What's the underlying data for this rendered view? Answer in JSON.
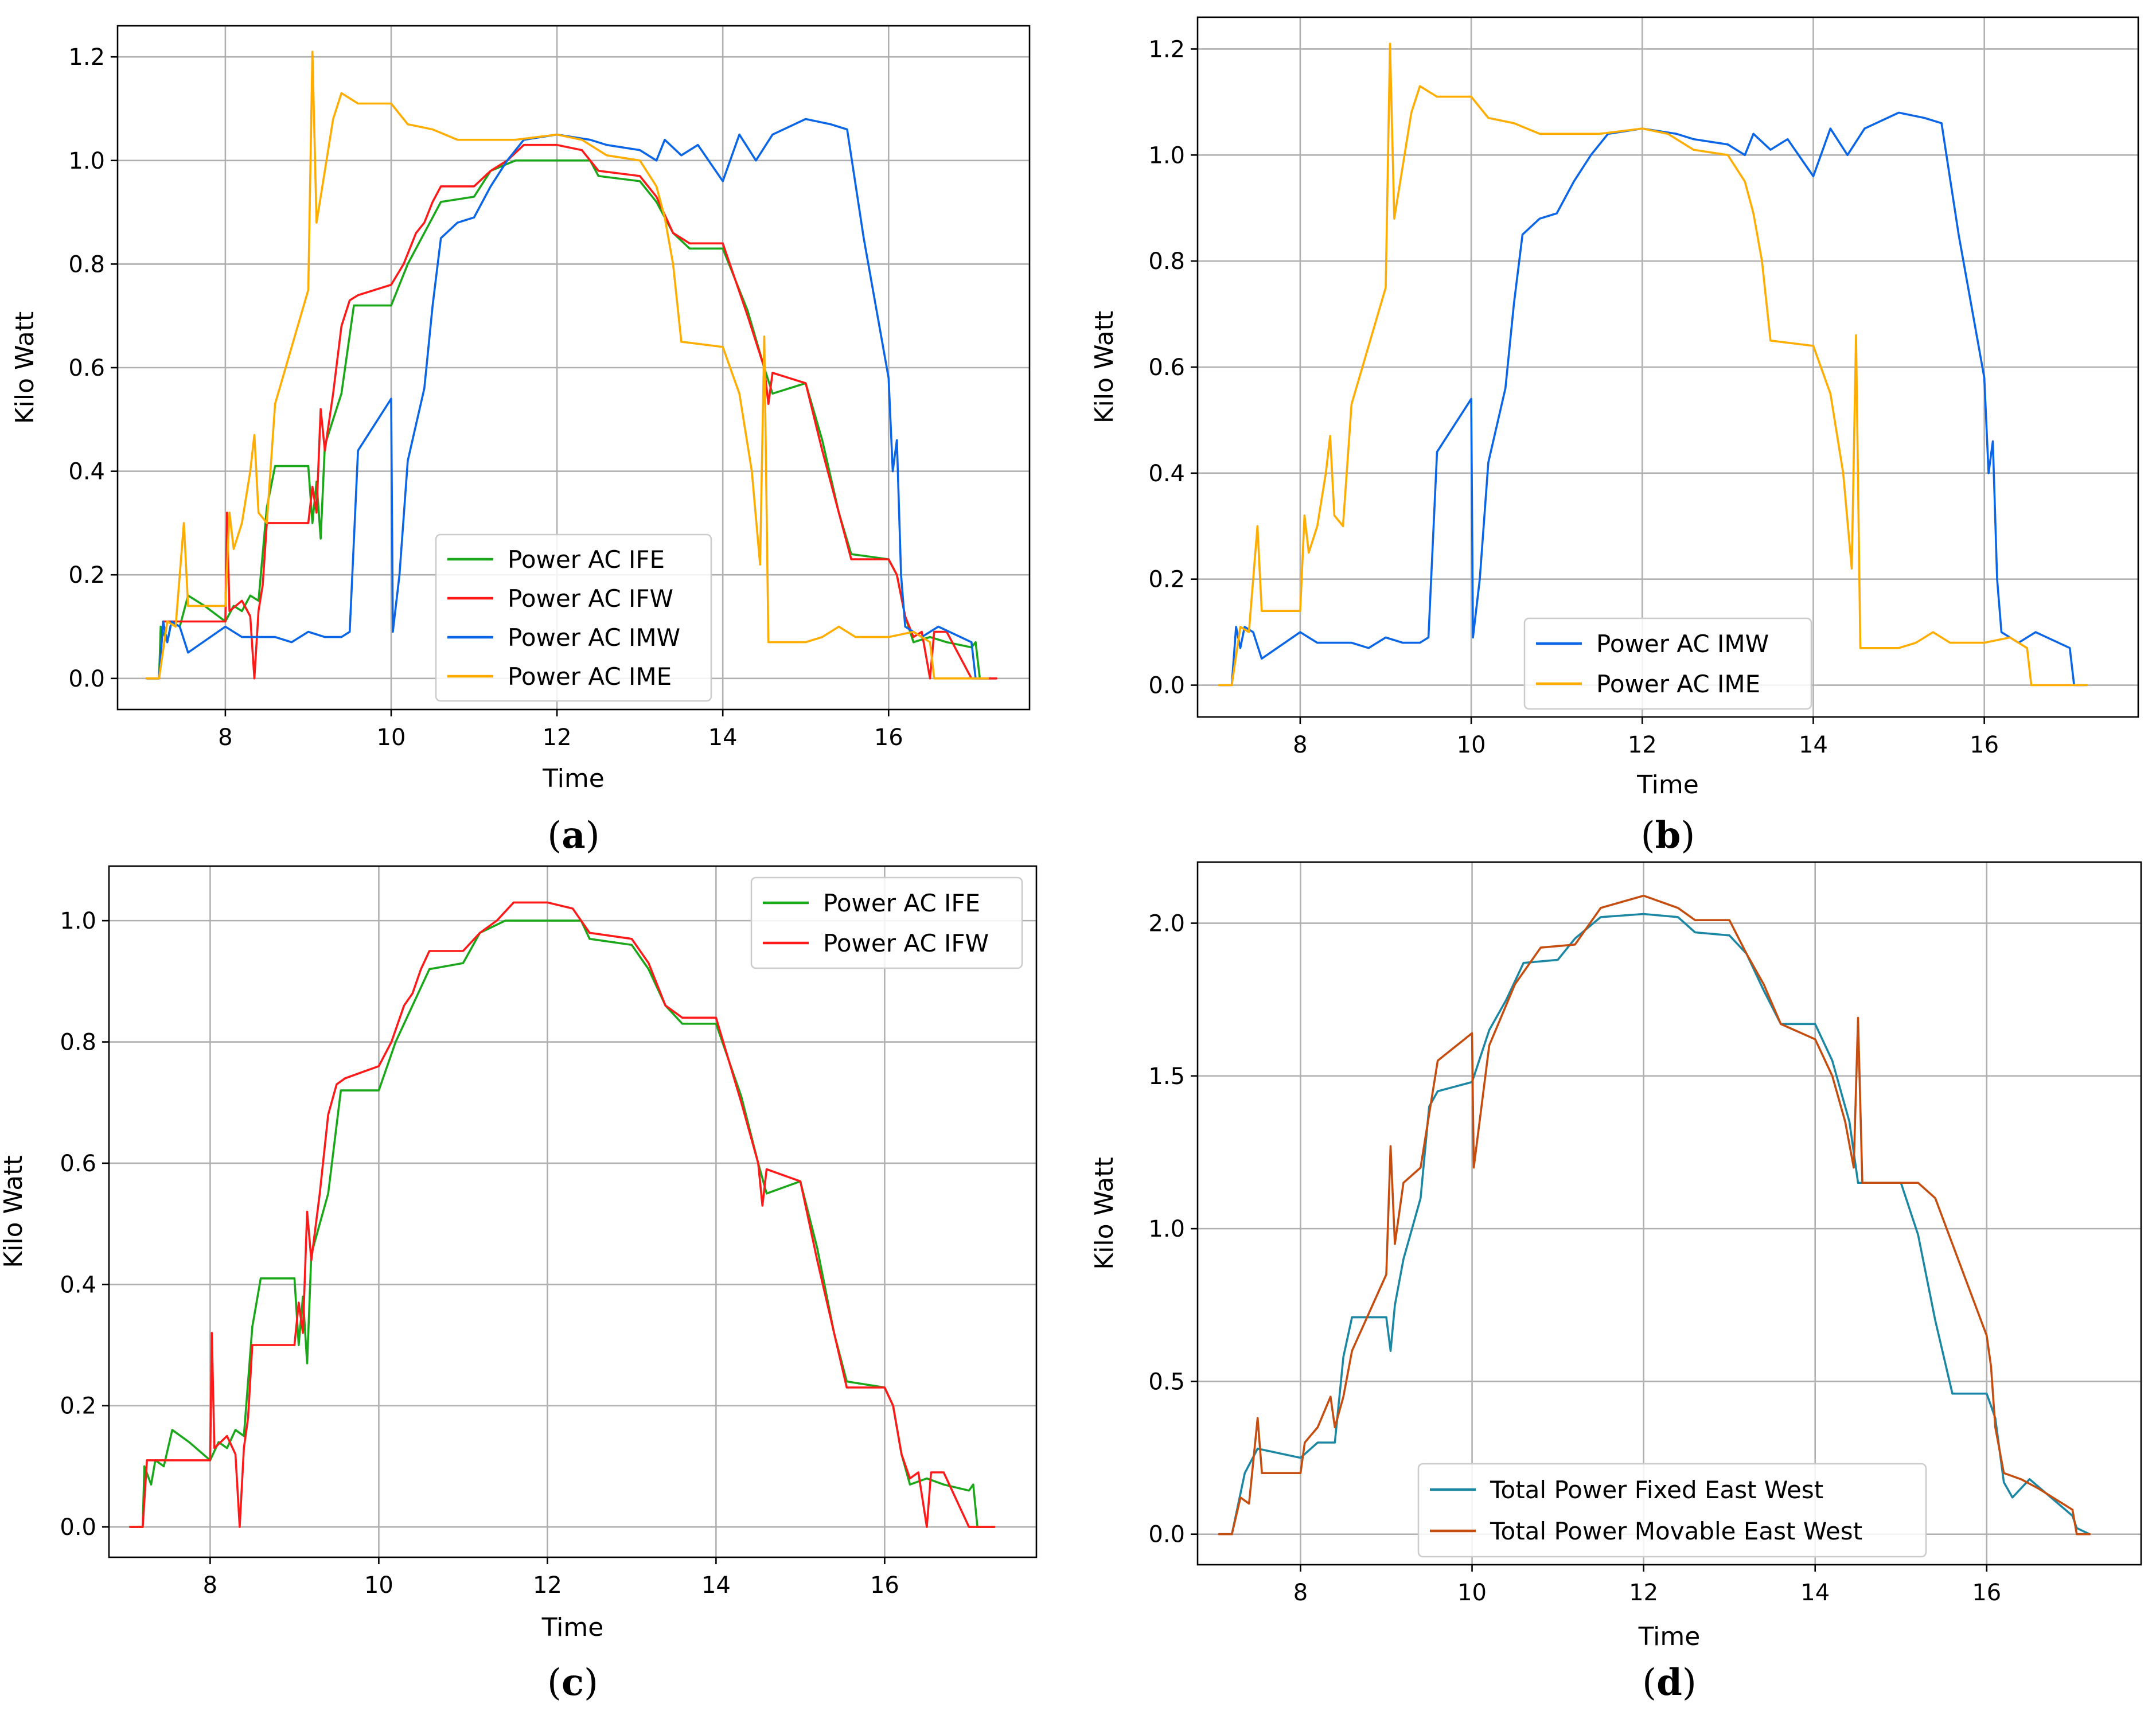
{
  "colors": {
    "IFE": "#1aa71a",
    "IFW": "#ff1a1a",
    "IMW": "#0a66e6",
    "IME": "#ffad00",
    "FixedEW": "#1b87a3",
    "MovableEW": "#c44d0f",
    "grid": "#b0b0b0"
  },
  "chart_data": [
    {
      "panel": "(a)",
      "type": "line",
      "xlabel": "Time",
      "ylabel": "Kilo Watt",
      "xlim": [
        6.7,
        17.7
      ],
      "ylim": [
        -0.06,
        1.26
      ],
      "xticks": [
        8,
        10,
        12,
        14,
        16
      ],
      "yticks": [
        0.0,
        0.2,
        0.4,
        0.6,
        0.8,
        1.0,
        1.2
      ],
      "ytick_labels": [
        "0.0",
        "0.2",
        "0.4",
        "0.6",
        "0.8",
        "1.0",
        "1.2"
      ],
      "legend": {
        "placement": "lower-center"
      },
      "series": [
        {
          "name": "Power AC IFE",
          "key": "IFE"
        },
        {
          "name": "Power AC IFW",
          "key": "IFW"
        },
        {
          "name": "Power AC IMW",
          "key": "IMW"
        },
        {
          "name": "Power AC IME",
          "key": "IME"
        }
      ]
    },
    {
      "panel": "(b)",
      "type": "line",
      "xlabel": "Time",
      "ylabel": "Kilo Watt",
      "xlim": [
        6.8,
        17.8
      ],
      "ylim": [
        -0.06,
        1.26
      ],
      "xticks": [
        8,
        10,
        12,
        14,
        16
      ],
      "yticks": [
        0.0,
        0.2,
        0.4,
        0.6,
        0.8,
        1.0,
        1.2
      ],
      "ytick_labels": [
        "0.0",
        "0.2",
        "0.4",
        "0.6",
        "0.8",
        "1.0",
        "1.2"
      ],
      "legend": {
        "placement": "lower-center"
      },
      "series": [
        {
          "name": "Power AC IMW",
          "key": "IMW"
        },
        {
          "name": "Power AC IME",
          "key": "IME"
        }
      ]
    },
    {
      "panel": "(c)",
      "type": "line",
      "xlabel": "Time",
      "ylabel": "Kilo Watt",
      "xlim": [
        6.8,
        17.8
      ],
      "ylim": [
        -0.05,
        1.09
      ],
      "xticks": [
        8,
        10,
        12,
        14,
        16
      ],
      "yticks": [
        0.0,
        0.2,
        0.4,
        0.6,
        0.8,
        1.0
      ],
      "ytick_labels": [
        "0.0",
        "0.2",
        "0.4",
        "0.6",
        "0.8",
        "1.0"
      ],
      "legend": {
        "placement": "top-right"
      },
      "series": [
        {
          "name": "Power AC IFE",
          "key": "IFE"
        },
        {
          "name": "Power AC IFW",
          "key": "IFW"
        }
      ]
    },
    {
      "panel": "(d)",
      "type": "line",
      "xlabel": "Time",
      "ylabel": "Kilo Watt",
      "xlim": [
        6.8,
        17.8
      ],
      "ylim": [
        -0.1,
        2.2
      ],
      "xticks": [
        8,
        10,
        12,
        14,
        16
      ],
      "yticks": [
        0.0,
        0.5,
        1.0,
        1.5,
        2.0
      ],
      "ytick_labels": [
        "0.0",
        "0.5",
        "1.0",
        "1.5",
        "2.0"
      ],
      "legend": {
        "placement": "lower-center"
      },
      "series": [
        {
          "name": "Total Power Fixed East West",
          "key": "FixedEW"
        },
        {
          "name": "Total Power Movable East West",
          "key": "MovableEW"
        }
      ]
    }
  ],
  "series_values": {
    "IFE": [
      [
        7.05,
        0
      ],
      [
        7.2,
        0
      ],
      [
        7.22,
        0.1
      ],
      [
        7.3,
        0.07
      ],
      [
        7.35,
        0.11
      ],
      [
        7.45,
        0.1
      ],
      [
        7.55,
        0.16
      ],
      [
        7.75,
        0.14
      ],
      [
        8.0,
        0.11
      ],
      [
        8.1,
        0.14
      ],
      [
        8.2,
        0.13
      ],
      [
        8.3,
        0.16
      ],
      [
        8.4,
        0.15
      ],
      [
        8.5,
        0.33
      ],
      [
        8.6,
        0.41
      ],
      [
        9.0,
        0.41
      ],
      [
        9.05,
        0.3
      ],
      [
        9.1,
        0.38
      ],
      [
        9.15,
        0.27
      ],
      [
        9.2,
        0.45
      ],
      [
        9.3,
        0.5
      ],
      [
        9.4,
        0.55
      ],
      [
        9.55,
        0.72
      ],
      [
        10.0,
        0.72
      ],
      [
        10.2,
        0.8
      ],
      [
        10.4,
        0.86
      ],
      [
        10.6,
        0.92
      ],
      [
        11.0,
        0.93
      ],
      [
        11.2,
        0.98
      ],
      [
        11.5,
        1.0
      ],
      [
        12.0,
        1.0
      ],
      [
        12.4,
        1.0
      ],
      [
        12.5,
        0.97
      ],
      [
        13.0,
        0.96
      ],
      [
        13.2,
        0.92
      ],
      [
        13.4,
        0.86
      ],
      [
        13.6,
        0.83
      ],
      [
        14.0,
        0.83
      ],
      [
        14.3,
        0.71
      ],
      [
        14.5,
        0.6
      ],
      [
        14.6,
        0.55
      ],
      [
        15.0,
        0.57
      ],
      [
        15.2,
        0.46
      ],
      [
        15.4,
        0.32
      ],
      [
        15.55,
        0.24
      ],
      [
        16.0,
        0.23
      ],
      [
        16.1,
        0.2
      ],
      [
        16.2,
        0.12
      ],
      [
        16.3,
        0.07
      ],
      [
        16.5,
        0.08
      ],
      [
        16.7,
        0.07
      ],
      [
        17.0,
        0.06
      ],
      [
        17.05,
        0.07
      ],
      [
        17.1,
        0.0
      ],
      [
        17.3,
        0.0
      ]
    ],
    "IFW": [
      [
        7.05,
        0
      ],
      [
        7.2,
        0
      ],
      [
        7.25,
        0.11
      ],
      [
        7.5,
        0.11
      ],
      [
        8.0,
        0.11
      ],
      [
        8.02,
        0.32
      ],
      [
        8.05,
        0.13
      ],
      [
        8.2,
        0.15
      ],
      [
        8.3,
        0.12
      ],
      [
        8.35,
        0.0
      ],
      [
        8.4,
        0.13
      ],
      [
        8.45,
        0.18
      ],
      [
        8.5,
        0.3
      ],
      [
        9.0,
        0.3
      ],
      [
        9.05,
        0.37
      ],
      [
        9.1,
        0.32
      ],
      [
        9.15,
        0.52
      ],
      [
        9.2,
        0.44
      ],
      [
        9.3,
        0.55
      ],
      [
        9.4,
        0.68
      ],
      [
        9.5,
        0.73
      ],
      [
        9.6,
        0.74
      ],
      [
        10.0,
        0.76
      ],
      [
        10.15,
        0.8
      ],
      [
        10.3,
        0.86
      ],
      [
        10.4,
        0.88
      ],
      [
        10.5,
        0.92
      ],
      [
        10.6,
        0.95
      ],
      [
        11.0,
        0.95
      ],
      [
        11.2,
        0.98
      ],
      [
        11.4,
        1.0
      ],
      [
        11.6,
        1.03
      ],
      [
        12.0,
        1.03
      ],
      [
        12.3,
        1.02
      ],
      [
        12.5,
        0.98
      ],
      [
        13.0,
        0.97
      ],
      [
        13.2,
        0.93
      ],
      [
        13.4,
        0.86
      ],
      [
        13.6,
        0.84
      ],
      [
        14.0,
        0.84
      ],
      [
        14.3,
        0.7
      ],
      [
        14.5,
        0.6
      ],
      [
        14.55,
        0.53
      ],
      [
        14.6,
        0.59
      ],
      [
        15.0,
        0.57
      ],
      [
        15.2,
        0.44
      ],
      [
        15.4,
        0.32
      ],
      [
        15.55,
        0.23
      ],
      [
        16.0,
        0.23
      ],
      [
        16.1,
        0.2
      ],
      [
        16.2,
        0.12
      ],
      [
        16.3,
        0.08
      ],
      [
        16.4,
        0.09
      ],
      [
        16.5,
        0.0
      ],
      [
        16.55,
        0.09
      ],
      [
        16.7,
        0.09
      ],
      [
        17.0,
        0.0
      ],
      [
        17.3,
        0.0
      ]
    ],
    "IMW": [
      [
        7.05,
        0
      ],
      [
        7.2,
        0
      ],
      [
        7.25,
        0.11
      ],
      [
        7.3,
        0.07
      ],
      [
        7.35,
        0.11
      ],
      [
        7.45,
        0.1
      ],
      [
        7.55,
        0.05
      ],
      [
        8.0,
        0.1
      ],
      [
        8.2,
        0.08
      ],
      [
        8.4,
        0.08
      ],
      [
        8.6,
        0.08
      ],
      [
        8.8,
        0.07
      ],
      [
        9.0,
        0.09
      ],
      [
        9.2,
        0.08
      ],
      [
        9.4,
        0.08
      ],
      [
        9.5,
        0.09
      ],
      [
        9.6,
        0.44
      ],
      [
        10.0,
        0.54
      ],
      [
        10.02,
        0.09
      ],
      [
        10.1,
        0.2
      ],
      [
        10.2,
        0.42
      ],
      [
        10.4,
        0.56
      ],
      [
        10.5,
        0.72
      ],
      [
        10.6,
        0.85
      ],
      [
        10.8,
        0.88
      ],
      [
        11.0,
        0.89
      ],
      [
        11.2,
        0.95
      ],
      [
        11.4,
        1.0
      ],
      [
        11.6,
        1.04
      ],
      [
        12.0,
        1.05
      ],
      [
        12.4,
        1.04
      ],
      [
        12.6,
        1.03
      ],
      [
        13.0,
        1.02
      ],
      [
        13.2,
        1.0
      ],
      [
        13.3,
        1.04
      ],
      [
        13.5,
        1.01
      ],
      [
        13.7,
        1.03
      ],
      [
        14.0,
        0.96
      ],
      [
        14.2,
        1.05
      ],
      [
        14.4,
        1.0
      ],
      [
        14.6,
        1.05
      ],
      [
        15.0,
        1.08
      ],
      [
        15.3,
        1.07
      ],
      [
        15.5,
        1.06
      ],
      [
        15.7,
        0.85
      ],
      [
        16.0,
        0.58
      ],
      [
        16.05,
        0.4
      ],
      [
        16.1,
        0.46
      ],
      [
        16.15,
        0.2
      ],
      [
        16.2,
        0.1
      ],
      [
        16.4,
        0.08
      ],
      [
        16.6,
        0.1
      ],
      [
        17.0,
        0.07
      ],
      [
        17.05,
        0.0
      ],
      [
        17.2,
        0.0
      ]
    ],
    "IME": [
      [
        7.05,
        0
      ],
      [
        7.2,
        0
      ],
      [
        7.3,
        0.11
      ],
      [
        7.4,
        0.1
      ],
      [
        7.5,
        0.3
      ],
      [
        7.55,
        0.14
      ],
      [
        8.0,
        0.14
      ],
      [
        8.05,
        0.32
      ],
      [
        8.1,
        0.25
      ],
      [
        8.2,
        0.3
      ],
      [
        8.3,
        0.4
      ],
      [
        8.35,
        0.47
      ],
      [
        8.4,
        0.32
      ],
      [
        8.5,
        0.3
      ],
      [
        8.6,
        0.53
      ],
      [
        9.0,
        0.75
      ],
      [
        9.05,
        1.21
      ],
      [
        9.1,
        0.88
      ],
      [
        9.3,
        1.08
      ],
      [
        9.4,
        1.13
      ],
      [
        9.6,
        1.11
      ],
      [
        10.0,
        1.11
      ],
      [
        10.2,
        1.07
      ],
      [
        10.5,
        1.06
      ],
      [
        10.8,
        1.04
      ],
      [
        11.2,
        1.04
      ],
      [
        11.5,
        1.04
      ],
      [
        12.0,
        1.05
      ],
      [
        12.3,
        1.04
      ],
      [
        12.6,
        1.01
      ],
      [
        13.0,
        1.0
      ],
      [
        13.2,
        0.95
      ],
      [
        13.3,
        0.89
      ],
      [
        13.4,
        0.8
      ],
      [
        13.5,
        0.65
      ],
      [
        14.0,
        0.64
      ],
      [
        14.2,
        0.55
      ],
      [
        14.35,
        0.4
      ],
      [
        14.45,
        0.22
      ],
      [
        14.5,
        0.66
      ],
      [
        14.55,
        0.07
      ],
      [
        15.0,
        0.07
      ],
      [
        15.2,
        0.08
      ],
      [
        15.4,
        0.1
      ],
      [
        15.6,
        0.08
      ],
      [
        16.0,
        0.08
      ],
      [
        16.3,
        0.09
      ],
      [
        16.5,
        0.07
      ],
      [
        16.55,
        0.0
      ],
      [
        17.2,
        0.0
      ]
    ],
    "FixedEW": [
      [
        7.05,
        0
      ],
      [
        7.2,
        0
      ],
      [
        7.35,
        0.2
      ],
      [
        7.5,
        0.28
      ],
      [
        8.0,
        0.25
      ],
      [
        8.2,
        0.3
      ],
      [
        8.4,
        0.3
      ],
      [
        8.5,
        0.58
      ],
      [
        8.6,
        0.71
      ],
      [
        9.0,
        0.71
      ],
      [
        9.05,
        0.6
      ],
      [
        9.1,
        0.75
      ],
      [
        9.2,
        0.9
      ],
      [
        9.3,
        1.0
      ],
      [
        9.4,
        1.1
      ],
      [
        9.5,
        1.4
      ],
      [
        9.6,
        1.45
      ],
      [
        10.0,
        1.48
      ],
      [
        10.2,
        1.65
      ],
      [
        10.4,
        1.75
      ],
      [
        10.6,
        1.87
      ],
      [
        11.0,
        1.88
      ],
      [
        11.2,
        1.95
      ],
      [
        11.5,
        2.02
      ],
      [
        12.0,
        2.03
      ],
      [
        12.4,
        2.02
      ],
      [
        12.6,
        1.97
      ],
      [
        13.0,
        1.96
      ],
      [
        13.2,
        1.9
      ],
      [
        13.4,
        1.78
      ],
      [
        13.6,
        1.67
      ],
      [
        14.0,
        1.67
      ],
      [
        14.2,
        1.55
      ],
      [
        14.4,
        1.35
      ],
      [
        14.5,
        1.15
      ],
      [
        15.0,
        1.15
      ],
      [
        15.2,
        0.98
      ],
      [
        15.4,
        0.7
      ],
      [
        15.6,
        0.46
      ],
      [
        16.0,
        0.46
      ],
      [
        16.1,
        0.38
      ],
      [
        16.2,
        0.17
      ],
      [
        16.3,
        0.12
      ],
      [
        16.5,
        0.18
      ],
      [
        17.0,
        0.06
      ],
      [
        17.05,
        0.02
      ],
      [
        17.2,
        0.0
      ]
    ],
    "MovableEW": [
      [
        7.05,
        0
      ],
      [
        7.2,
        0
      ],
      [
        7.3,
        0.12
      ],
      [
        7.4,
        0.1
      ],
      [
        7.5,
        0.38
      ],
      [
        7.55,
        0.2
      ],
      [
        8.0,
        0.2
      ],
      [
        8.05,
        0.3
      ],
      [
        8.2,
        0.35
      ],
      [
        8.35,
        0.45
      ],
      [
        8.4,
        0.35
      ],
      [
        8.5,
        0.45
      ],
      [
        8.6,
        0.6
      ],
      [
        9.0,
        0.85
      ],
      [
        9.05,
        1.27
      ],
      [
        9.1,
        0.95
      ],
      [
        9.2,
        1.15
      ],
      [
        9.4,
        1.2
      ],
      [
        9.6,
        1.55
      ],
      [
        10.0,
        1.64
      ],
      [
        10.02,
        1.2
      ],
      [
        10.2,
        1.6
      ],
      [
        10.5,
        1.8
      ],
      [
        10.8,
        1.92
      ],
      [
        11.2,
        1.93
      ],
      [
        11.5,
        2.05
      ],
      [
        12.0,
        2.09
      ],
      [
        12.4,
        2.05
      ],
      [
        12.6,
        2.01
      ],
      [
        13.0,
        2.01
      ],
      [
        13.2,
        1.9
      ],
      [
        13.4,
        1.8
      ],
      [
        13.6,
        1.67
      ],
      [
        14.0,
        1.62
      ],
      [
        14.2,
        1.5
      ],
      [
        14.35,
        1.35
      ],
      [
        14.45,
        1.2
      ],
      [
        14.5,
        1.69
      ],
      [
        14.55,
        1.15
      ],
      [
        15.0,
        1.15
      ],
      [
        15.2,
        1.15
      ],
      [
        15.4,
        1.1
      ],
      [
        16.0,
        0.65
      ],
      [
        16.05,
        0.55
      ],
      [
        16.1,
        0.35
      ],
      [
        16.2,
        0.2
      ],
      [
        16.4,
        0.18
      ],
      [
        16.6,
        0.15
      ],
      [
        17.0,
        0.08
      ],
      [
        17.05,
        0.0
      ],
      [
        17.2,
        0.0
      ]
    ]
  }
}
